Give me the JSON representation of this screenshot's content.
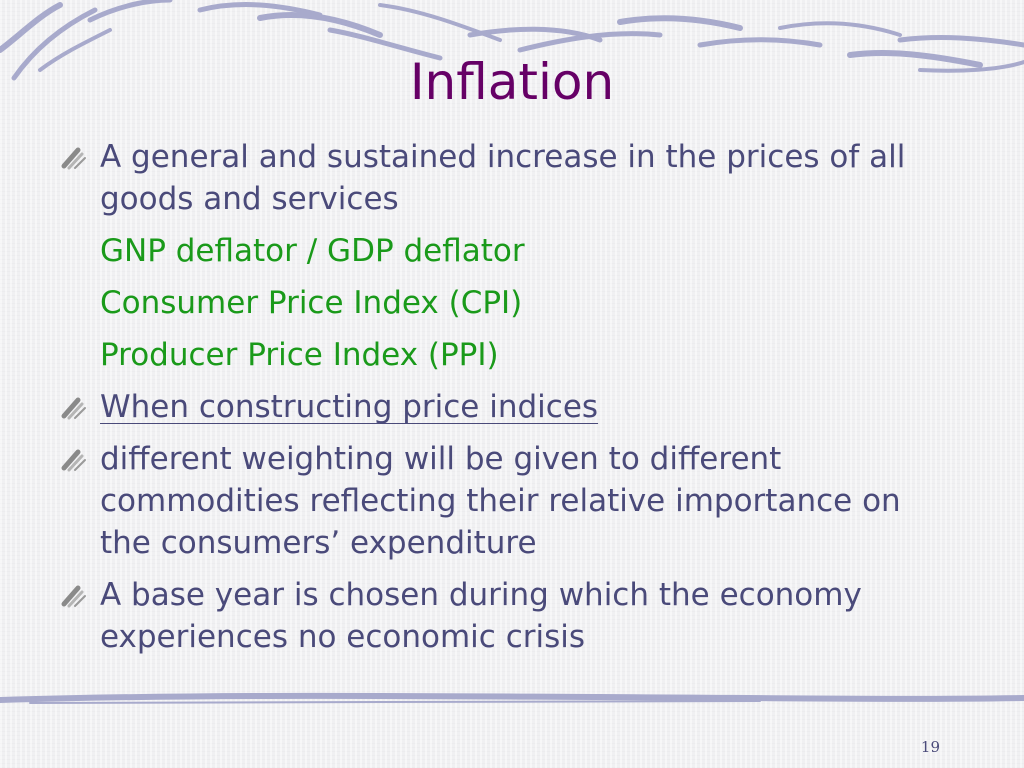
{
  "slide": {
    "title": "Inflation",
    "items": [
      {
        "text": "A general and sustained increase in the prices of all goods and services",
        "bullet": true,
        "style": "normal"
      },
      {
        "text": "GNP deflator /  GDP deflator",
        "bullet": false,
        "style": "green"
      },
      {
        "text": "Consumer Price Index (CPI)",
        "bullet": false,
        "style": "green"
      },
      {
        "text": "Producer Price Index (PPI)",
        "bullet": false,
        "style": "green"
      },
      {
        "text": "When constructing price indices",
        "bullet": true,
        "style": "underline"
      },
      {
        "text": "different weighting will be given to different commodities reflecting their relative importance on the consumers’ expenditure",
        "bullet": true,
        "style": "normal"
      },
      {
        "text": "A base year is chosen during which the economy experiences no economic crisis",
        "bullet": true,
        "style": "normal"
      }
    ],
    "page_number": "19"
  },
  "colors": {
    "title": "#660066",
    "body_text": "#4a4a7a",
    "sub_text": "#1a9a1a",
    "decoration": "#a8aacc"
  },
  "icons": {
    "bullet": "pencil-stroke-bullet-icon"
  }
}
